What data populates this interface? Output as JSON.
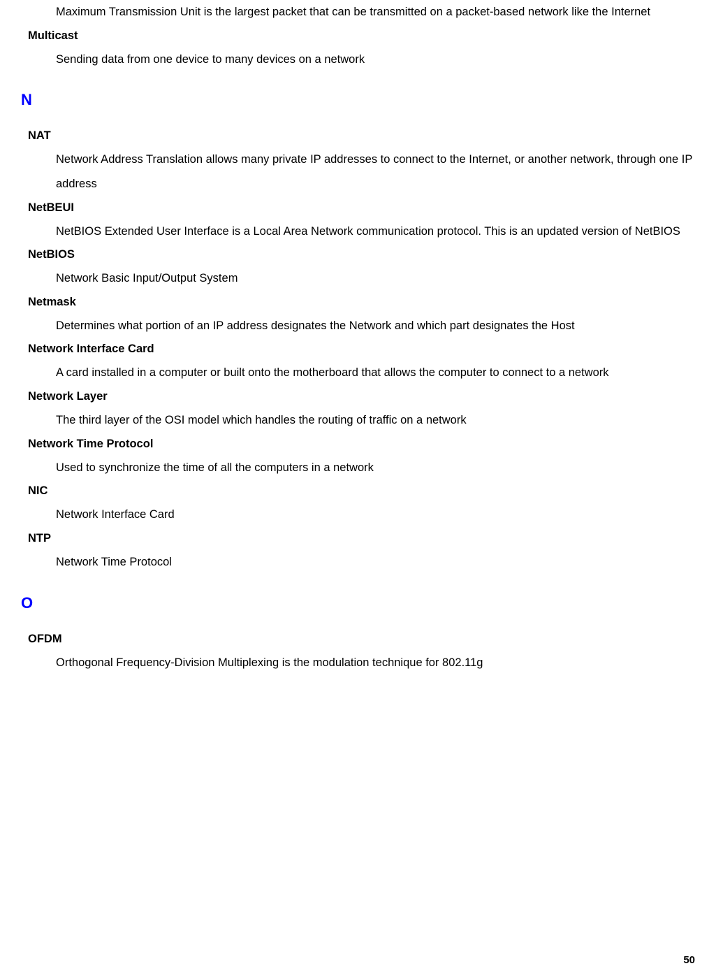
{
  "topEntries": [
    {
      "definition": "Maximum Transmission Unit is the largest packet that can be transmitted on a packet-based network like the Internet"
    },
    {
      "term": "Multicast",
      "definition": "Sending data from one device to many devices on a network"
    }
  ],
  "sections": [
    {
      "letter": "N",
      "entries": [
        {
          "term": "NAT",
          "definition": "Network Address Translation allows many private IP addresses to connect to the Internet, or another network, through one IP address"
        },
        {
          "term": "NetBEUI",
          "definition": "NetBIOS Extended User Interface is a Local Area Network communication protocol. This is an updated version of NetBIOS"
        },
        {
          "term": "NetBIOS",
          "definition": "Network Basic Input/Output System"
        },
        {
          "term": "Netmask",
          "definition": "Determines what portion of an IP address designates the Network and which part designates the Host"
        },
        {
          "term": "Network Interface Card",
          "definition": "A card installed in a computer or built onto the motherboard that allows the computer to connect to a network"
        },
        {
          "term": "Network Layer",
          "definition": "The third layer of the OSI model which handles the routing of traffic on a network"
        },
        {
          "term": "Network Time Protocol",
          "definition": "Used to synchronize the time of all the computers in a network"
        },
        {
          "term": "NIC",
          "definition": "Network Interface Card"
        },
        {
          "term": "NTP",
          "definition": "Network Time Protocol"
        }
      ]
    },
    {
      "letter": "O",
      "entries": [
        {
          "term": "OFDM",
          "definition": "Orthogonal Frequency-Division Multiplexing is the modulation technique for 802.11g"
        }
      ]
    }
  ],
  "pageNumber": "50",
  "colors": {
    "sectionLetter": "#0000ff",
    "text": "#000000",
    "background": "#ffffff"
  },
  "typography": {
    "bodyFontSize": 16.5,
    "letterFontSize": 22,
    "fontFamily": "Arial"
  }
}
